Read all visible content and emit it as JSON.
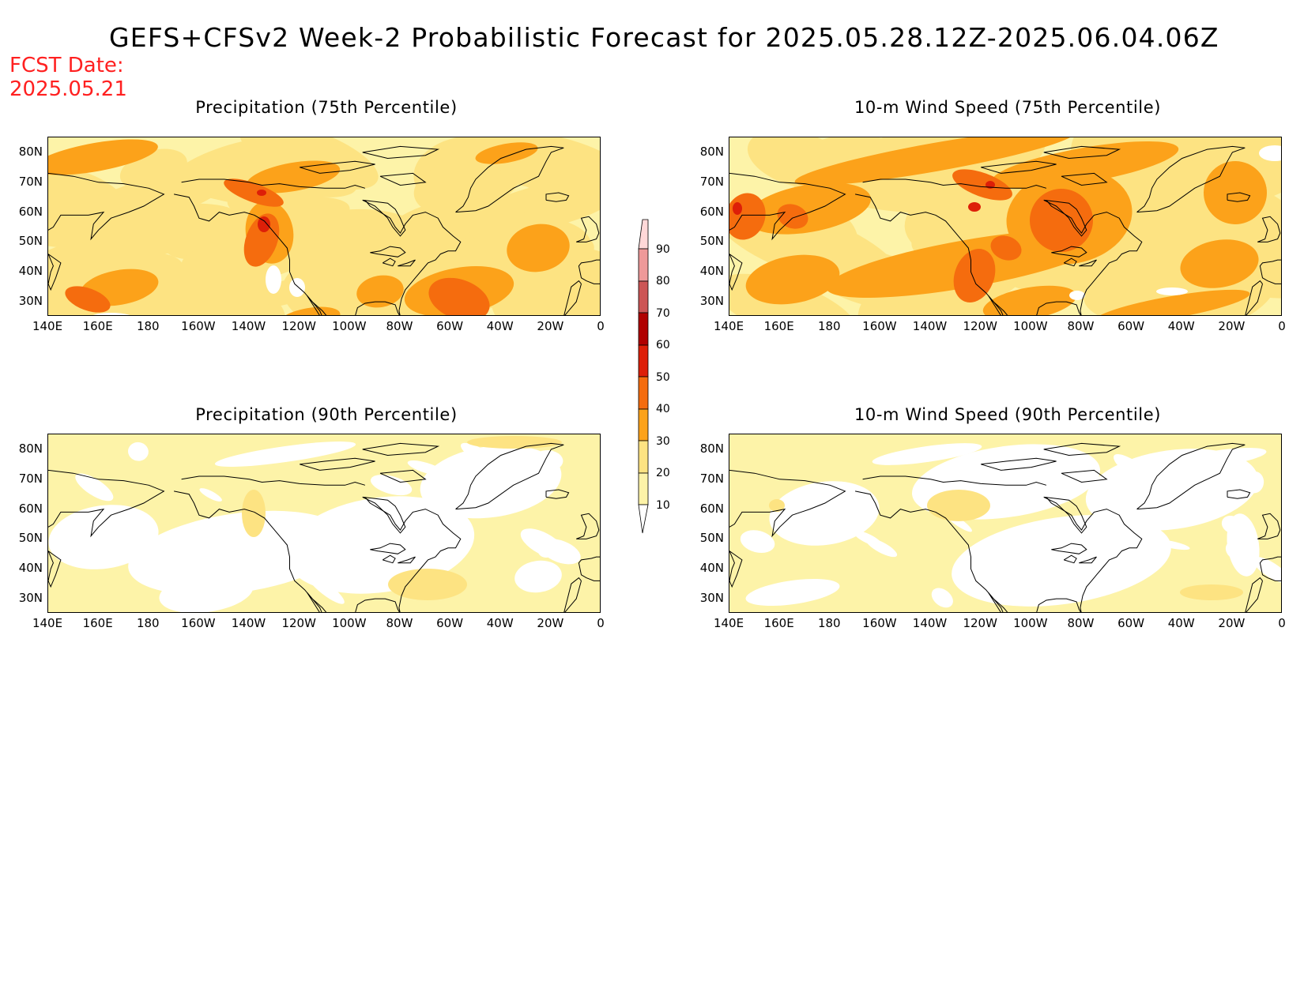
{
  "title": "GEFS+CFSv2 Week-2 Probabilistic Forecast for 2025.05.28.12Z-2025.06.04.06Z",
  "fcst_date_label": "FCST Date:",
  "fcst_date_value": "2025.05.21",
  "colors": {
    "level_10_20": "#fdf3a8",
    "level_20_30": "#fde382",
    "level_30_40": "#fca21a",
    "level_40_50": "#f56c0e",
    "level_50_60": "#dd1f08",
    "level_60_70": "#b00000",
    "level_70_80": "#cc5555",
    "level_80_90": "#ee9999",
    "level_90_plus": "#ffd8d8",
    "fcst_text": "#ff2020"
  },
  "colorbar": {
    "levels": [
      "90",
      "80",
      "70",
      "60",
      "50",
      "40",
      "30",
      "20",
      "10"
    ]
  },
  "axes": {
    "lat_labels": [
      "80N",
      "70N",
      "60N",
      "50N",
      "40N",
      "30N"
    ],
    "lon_labels": [
      "140E",
      "160E",
      "180",
      "160W",
      "140W",
      "120W",
      "100W",
      "80W",
      "60W",
      "40W",
      "20W",
      "0"
    ]
  },
  "panels": [
    {
      "id": "precip75",
      "title": "Precipitation (75th Percentile)",
      "intensity": "high"
    },
    {
      "id": "wind75",
      "title": "10-m Wind Speed (75th Percentile)",
      "intensity": "high"
    },
    {
      "id": "precip90",
      "title": "Precipitation (90th Percentile)",
      "intensity": "low"
    },
    {
      "id": "wind90",
      "title": "10-m Wind Speed (90th Percentile)",
      "intensity": "low"
    }
  ]
}
